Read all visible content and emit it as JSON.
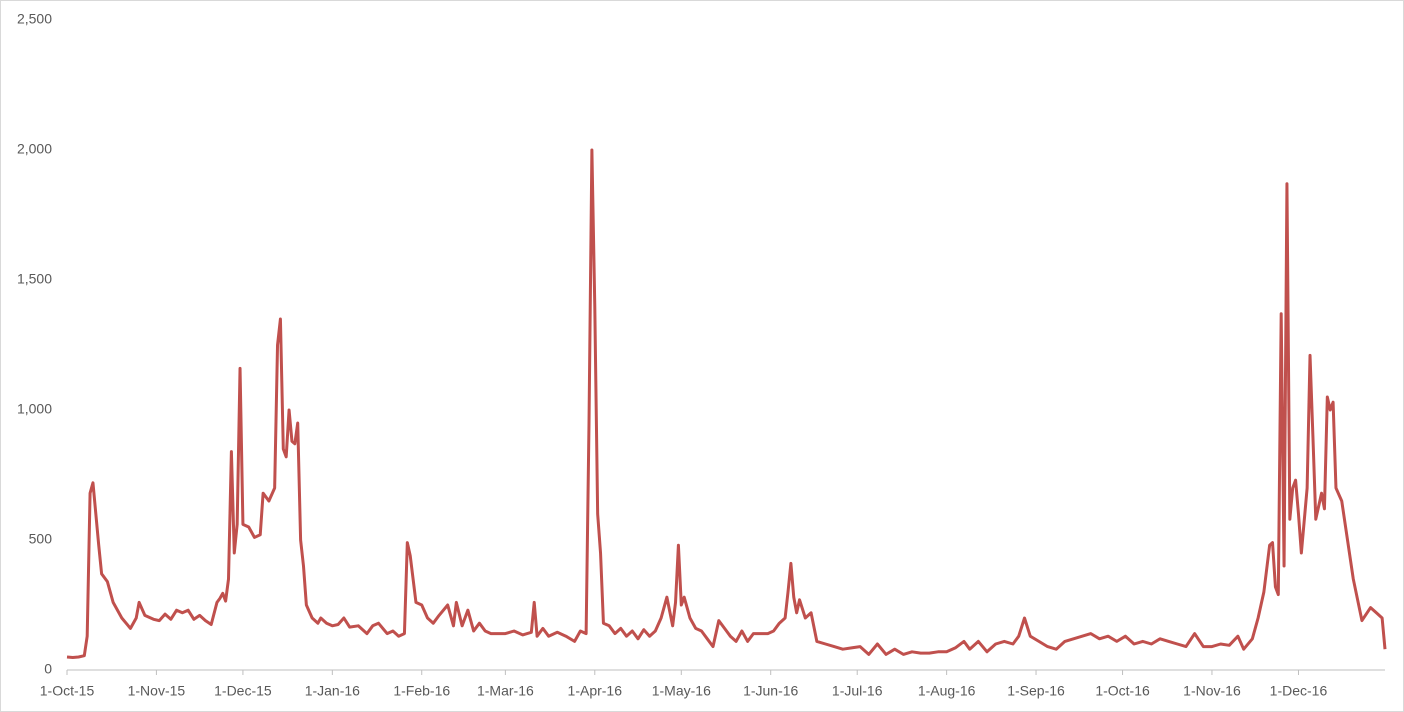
{
  "chart_data": {
    "type": "line",
    "x": [
      "2015-10-01",
      "2015-10-03",
      "2015-10-05",
      "2015-10-07",
      "2015-10-08",
      "2015-10-09",
      "2015-10-10",
      "2015-10-11",
      "2015-10-12",
      "2015-10-13",
      "2015-10-15",
      "2015-10-17",
      "2015-10-20",
      "2015-10-23",
      "2015-10-25",
      "2015-10-26",
      "2015-10-28",
      "2015-10-31",
      "2015-11-02",
      "2015-11-04",
      "2015-11-06",
      "2015-11-08",
      "2015-11-10",
      "2015-11-12",
      "2015-11-14",
      "2015-11-16",
      "2015-11-18",
      "2015-11-20",
      "2015-11-22",
      "2015-11-23",
      "2015-11-24",
      "2015-11-25",
      "2015-11-26",
      "2015-11-27",
      "2015-11-28",
      "2015-11-29",
      "2015-11-30",
      "2015-12-01",
      "2015-12-03",
      "2015-12-05",
      "2015-12-07",
      "2015-12-08",
      "2015-12-10",
      "2015-12-12",
      "2015-12-13",
      "2015-12-14",
      "2015-12-15",
      "2015-12-16",
      "2015-12-17",
      "2015-12-18",
      "2015-12-19",
      "2015-12-20",
      "2015-12-21",
      "2015-12-22",
      "2015-12-23",
      "2015-12-25",
      "2015-12-27",
      "2015-12-28",
      "2015-12-30",
      "2016-01-01",
      "2016-01-03",
      "2016-01-05",
      "2016-01-07",
      "2016-01-10",
      "2016-01-13",
      "2016-01-15",
      "2016-01-17",
      "2016-01-20",
      "2016-01-22",
      "2016-01-24",
      "2016-01-26",
      "2016-01-27",
      "2016-01-28",
      "2016-01-30",
      "2016-02-01",
      "2016-02-03",
      "2016-02-05",
      "2016-02-07",
      "2016-02-10",
      "2016-02-12",
      "2016-02-13",
      "2016-02-15",
      "2016-02-17",
      "2016-02-19",
      "2016-02-21",
      "2016-02-23",
      "2016-02-25",
      "2016-02-28",
      "2016-03-01",
      "2016-03-04",
      "2016-03-07",
      "2016-03-10",
      "2016-03-11",
      "2016-03-12",
      "2016-03-14",
      "2016-03-16",
      "2016-03-19",
      "2016-03-22",
      "2016-03-25",
      "2016-03-27",
      "2016-03-29",
      "2016-03-30",
      "2016-03-31",
      "2016-04-01",
      "2016-04-02",
      "2016-04-03",
      "2016-04-04",
      "2016-04-06",
      "2016-04-08",
      "2016-04-10",
      "2016-04-12",
      "2016-04-14",
      "2016-04-16",
      "2016-04-18",
      "2016-04-20",
      "2016-04-22",
      "2016-04-24",
      "2016-04-26",
      "2016-04-28",
      "2016-04-29",
      "2016-04-30",
      "2016-05-01",
      "2016-05-02",
      "2016-05-04",
      "2016-05-06",
      "2016-05-08",
      "2016-05-10",
      "2016-05-12",
      "2016-05-14",
      "2016-05-16",
      "2016-05-18",
      "2016-05-20",
      "2016-05-22",
      "2016-05-24",
      "2016-05-26",
      "2016-05-28",
      "2016-05-31",
      "2016-06-02",
      "2016-06-04",
      "2016-06-06",
      "2016-06-07",
      "2016-06-08",
      "2016-06-09",
      "2016-06-10",
      "2016-06-11",
      "2016-06-13",
      "2016-06-15",
      "2016-06-17",
      "2016-06-20",
      "2016-06-23",
      "2016-06-26",
      "2016-06-29",
      "2016-07-02",
      "2016-07-05",
      "2016-07-08",
      "2016-07-11",
      "2016-07-14",
      "2016-07-17",
      "2016-07-20",
      "2016-07-23",
      "2016-07-26",
      "2016-07-29",
      "2016-08-01",
      "2016-08-04",
      "2016-08-07",
      "2016-08-09",
      "2016-08-12",
      "2016-08-15",
      "2016-08-18",
      "2016-08-21",
      "2016-08-24",
      "2016-08-26",
      "2016-08-28",
      "2016-08-30",
      "2016-09-02",
      "2016-09-05",
      "2016-09-08",
      "2016-09-11",
      "2016-09-14",
      "2016-09-17",
      "2016-09-20",
      "2016-09-23",
      "2016-09-26",
      "2016-09-29",
      "2016-10-02",
      "2016-10-05",
      "2016-10-08",
      "2016-10-11",
      "2016-10-14",
      "2016-10-17",
      "2016-10-20",
      "2016-10-23",
      "2016-10-26",
      "2016-10-29",
      "2016-11-01",
      "2016-11-04",
      "2016-11-07",
      "2016-11-10",
      "2016-11-12",
      "2016-11-15",
      "2016-11-17",
      "2016-11-19",
      "2016-11-21",
      "2016-11-22",
      "2016-11-23",
      "2016-11-24",
      "2016-11-25",
      "2016-11-26",
      "2016-11-27",
      "2016-11-28",
      "2016-11-29",
      "2016-11-30",
      "2016-12-01",
      "2016-12-02",
      "2016-12-04",
      "2016-12-05",
      "2016-12-06",
      "2016-12-07",
      "2016-12-09",
      "2016-12-10",
      "2016-12-11",
      "2016-12-12",
      "2016-12-13",
      "2016-12-14",
      "2016-12-16",
      "2016-12-18",
      "2016-12-20",
      "2016-12-23",
      "2016-12-26",
      "2016-12-28",
      "2016-12-30",
      "2016-12-31"
    ],
    "series": [
      {
        "color": "#c0504d",
        "values": [
          50,
          48,
          50,
          55,
          130,
          680,
          720,
          600,
          480,
          370,
          340,
          260,
          200,
          160,
          200,
          260,
          210,
          195,
          190,
          215,
          195,
          230,
          220,
          230,
          195,
          210,
          190,
          175,
          260,
          275,
          295,
          265,
          350,
          840,
          450,
          560,
          1160,
          560,
          550,
          510,
          520,
          680,
          650,
          700,
          1250,
          1350,
          850,
          820,
          1000,
          880,
          870,
          950,
          500,
          400,
          250,
          200,
          180,
          200,
          180,
          170,
          175,
          200,
          165,
          170,
          140,
          170,
          180,
          140,
          150,
          130,
          140,
          490,
          440,
          260,
          250,
          200,
          180,
          210,
          250,
          170,
          260,
          170,
          230,
          150,
          180,
          150,
          140,
          140,
          140,
          150,
          135,
          145,
          260,
          130,
          160,
          130,
          145,
          130,
          110,
          150,
          140,
          950,
          2000,
          1400,
          600,
          450,
          180,
          170,
          140,
          160,
          130,
          150,
          120,
          155,
          130,
          150,
          200,
          280,
          170,
          260,
          480,
          250,
          280,
          200,
          160,
          150,
          120,
          90,
          190,
          160,
          130,
          110,
          150,
          110,
          140,
          140,
          140,
          150,
          180,
          200,
          300,
          410,
          280,
          220,
          270,
          200,
          220,
          110,
          100,
          90,
          80,
          85,
          90,
          60,
          100,
          60,
          80,
          60,
          70,
          65,
          65,
          70,
          70,
          85,
          110,
          80,
          110,
          70,
          100,
          110,
          100,
          130,
          200,
          130,
          110,
          90,
          80,
          110,
          120,
          130,
          140,
          120,
          130,
          110,
          130,
          100,
          110,
          100,
          120,
          110,
          100,
          90,
          140,
          90,
          90,
          100,
          95,
          130,
          80,
          120,
          200,
          300,
          480,
          490,
          320,
          290,
          1370,
          400,
          1870,
          580,
          700,
          730,
          600,
          450,
          700,
          1210,
          900,
          580,
          680,
          620,
          1050,
          1000,
          1030,
          700,
          650,
          500,
          350,
          190,
          240,
          220,
          200,
          80
        ]
      }
    ],
    "xlim": [
      "2015-10-01",
      "2016-12-31"
    ],
    "xticks": [
      {
        "value": "2015-10-01",
        "label": "1-Oct-15"
      },
      {
        "value": "2015-11-01",
        "label": "1-Nov-15"
      },
      {
        "value": "2015-12-01",
        "label": "1-Dec-15"
      },
      {
        "value": "2016-01-01",
        "label": "1-Jan-16"
      },
      {
        "value": "2016-02-01",
        "label": "1-Feb-16"
      },
      {
        "value": "2016-03-01",
        "label": "1-Mar-16"
      },
      {
        "value": "2016-04-01",
        "label": "1-Apr-16"
      },
      {
        "value": "2016-05-01",
        "label": "1-May-16"
      },
      {
        "value": "2016-06-01",
        "label": "1-Jun-16"
      },
      {
        "value": "2016-07-01",
        "label": "1-Jul-16"
      },
      {
        "value": "2016-08-01",
        "label": "1-Aug-16"
      },
      {
        "value": "2016-09-01",
        "label": "1-Sep-16"
      },
      {
        "value": "2016-10-01",
        "label": "1-Oct-16"
      },
      {
        "value": "2016-11-01",
        "label": "1-Nov-16"
      },
      {
        "value": "2016-12-01",
        "label": "1-Dec-16"
      }
    ],
    "ylim": [
      0,
      2500
    ],
    "yticks": [
      0,
      500,
      {
        "value": 1000,
        "label": "1,000"
      },
      {
        "value": 1500,
        "label": "1,500"
      },
      {
        "value": 2000,
        "label": "2,000"
      },
      {
        "value": 2500,
        "label": "2,500"
      }
    ],
    "grid": false
  }
}
